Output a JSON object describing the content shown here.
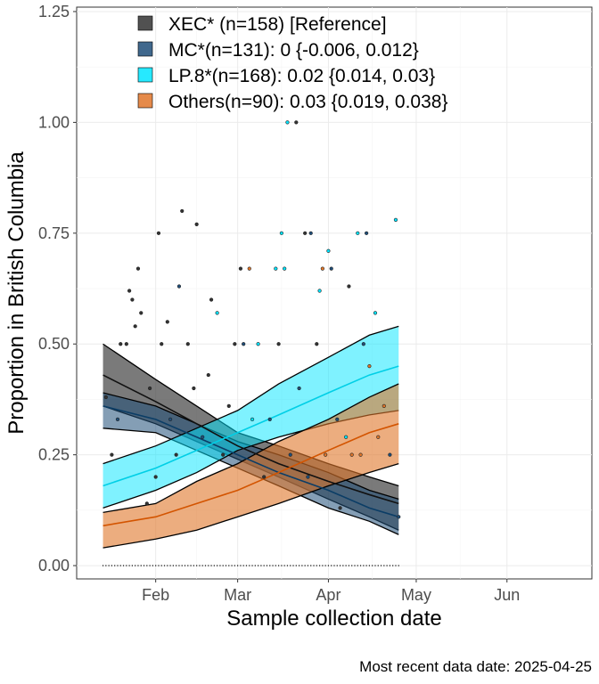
{
  "chart_data": {
    "type": "area",
    "title": "",
    "xlabel": "Sample collection date",
    "ylabel": "Proportion in British Columbia",
    "caption": "Most recent data date: 2025-04-25",
    "x_ticks": [
      "Feb",
      "Mar",
      "Apr",
      "May",
      "Jun"
    ],
    "x_tick_dates": [
      "2025-02-01",
      "2025-03-01",
      "2025-04-01",
      "2025-05-01",
      "2025-06-01"
    ],
    "xlim": [
      "2025-01-05",
      "2025-06-30"
    ],
    "y_ticks": [
      "0.00",
      "0.25",
      "0.50",
      "0.75",
      "1.00",
      "1.25"
    ],
    "y_tick_values": [
      0,
      0.25,
      0.5,
      0.75,
      1.0,
      1.25
    ],
    "ylim": [
      -0.03,
      1.26
    ],
    "grid": true,
    "legend_position": "top-left inside",
    "legend": [
      {
        "label": "XEC* (n=158)  [Reference]",
        "color": "#333333"
      },
      {
        "label": "MC*(n=131): 0 {-0.006, 0.012}",
        "color": "#1f4e79"
      },
      {
        "label": "LP.8*(n=168): 0.02 {0.014, 0.03}",
        "color": "#00e5ff"
      },
      {
        "label": "Others(n=90): 0.03 {0.019, 0.038}",
        "color": "#e0762a"
      }
    ],
    "series": [
      {
        "name": "XEC* (n=158)  [Reference]",
        "fill": "#333333",
        "line": "#111111",
        "opacity": 0.65,
        "x": [
          "2025-01-14",
          "2025-02-01",
          "2025-02-15",
          "2025-03-01",
          "2025-03-15",
          "2025-04-01",
          "2025-04-15",
          "2025-04-25"
        ],
        "fit": [
          0.43,
          0.37,
          0.32,
          0.27,
          0.23,
          0.19,
          0.16,
          0.14
        ],
        "lower": [
          0.36,
          0.32,
          0.28,
          0.24,
          0.2,
          0.15,
          0.11,
          0.08
        ],
        "upper": [
          0.5,
          0.42,
          0.36,
          0.3,
          0.27,
          0.23,
          0.2,
          0.18
        ]
      },
      {
        "name": "MC*(n=131): 0 {-0.006, 0.012}",
        "fill": "#1f4e79",
        "line": "#0b3d66",
        "opacity": 0.55,
        "x": [
          "2025-01-14",
          "2025-02-01",
          "2025-02-15",
          "2025-03-01",
          "2025-03-15",
          "2025-04-01",
          "2025-04-15",
          "2025-04-25"
        ],
        "fit": [
          0.36,
          0.33,
          0.29,
          0.25,
          0.21,
          0.17,
          0.13,
          0.11
        ],
        "lower": [
          0.31,
          0.3,
          0.26,
          0.22,
          0.18,
          0.13,
          0.1,
          0.07
        ],
        "upper": [
          0.39,
          0.36,
          0.32,
          0.28,
          0.25,
          0.21,
          0.17,
          0.15
        ]
      },
      {
        "name": "LP.8*(n=168): 0.02 {0.014, 0.03}",
        "fill": "#00e5ff",
        "line": "#00cfe6",
        "opacity": 0.5,
        "x": [
          "2025-01-14",
          "2025-02-01",
          "2025-02-15",
          "2025-03-01",
          "2025-03-15",
          "2025-04-01",
          "2025-04-15",
          "2025-04-25"
        ],
        "fit": [
          0.18,
          0.22,
          0.26,
          0.3,
          0.34,
          0.39,
          0.43,
          0.45
        ],
        "lower": [
          0.13,
          0.17,
          0.21,
          0.26,
          0.29,
          0.32,
          0.34,
          0.35
        ],
        "upper": [
          0.23,
          0.27,
          0.31,
          0.35,
          0.41,
          0.47,
          0.52,
          0.54
        ]
      },
      {
        "name": "Others(n=90): 0.03 {0.019, 0.038}",
        "fill": "#e0762a",
        "line": "#d35400",
        "opacity": 0.6,
        "x": [
          "2025-01-14",
          "2025-02-01",
          "2025-02-15",
          "2025-03-01",
          "2025-03-15",
          "2025-04-01",
          "2025-04-15",
          "2025-04-25"
        ],
        "fit": [
          0.09,
          0.11,
          0.14,
          0.17,
          0.21,
          0.26,
          0.3,
          0.32
        ],
        "lower": [
          0.04,
          0.06,
          0.08,
          0.11,
          0.14,
          0.18,
          0.21,
          0.23
        ],
        "upper": [
          0.12,
          0.14,
          0.19,
          0.23,
          0.28,
          0.33,
          0.38,
          0.41
        ]
      }
    ],
    "points": [
      {
        "x": "2025-01-15",
        "y": 0.38,
        "color": "#333333"
      },
      {
        "x": "2025-01-17",
        "y": 0.25,
        "color": "#333333"
      },
      {
        "x": "2025-01-19",
        "y": 0.33,
        "color": "#1f4e79"
      },
      {
        "x": "2025-01-20",
        "y": 0.5,
        "color": "#333333"
      },
      {
        "x": "2025-01-22",
        "y": 0.5,
        "color": "#333333"
      },
      {
        "x": "2025-01-23",
        "y": 0.62,
        "color": "#333333"
      },
      {
        "x": "2025-01-24",
        "y": 0.6,
        "color": "#333333"
      },
      {
        "x": "2025-01-25",
        "y": 0.54,
        "color": "#333333"
      },
      {
        "x": "2025-01-26",
        "y": 0.67,
        "color": "#333333"
      },
      {
        "x": "2025-01-27",
        "y": 0.57,
        "color": "#333333"
      },
      {
        "x": "2025-01-29",
        "y": 0.14,
        "color": "#333333"
      },
      {
        "x": "2025-01-30",
        "y": 0.4,
        "color": "#333333"
      },
      {
        "x": "2025-02-01",
        "y": 0.2,
        "color": "#333333"
      },
      {
        "x": "2025-02-02",
        "y": 0.75,
        "color": "#333333"
      },
      {
        "x": "2025-02-03",
        "y": 0.5,
        "color": "#333333"
      },
      {
        "x": "2025-02-05",
        "y": 0.55,
        "color": "#333333"
      },
      {
        "x": "2025-02-06",
        "y": 0.33,
        "color": "#1f4e79"
      },
      {
        "x": "2025-02-08",
        "y": 0.25,
        "color": "#333333"
      },
      {
        "x": "2025-02-09",
        "y": 0.63,
        "color": "#1f4e79"
      },
      {
        "x": "2025-02-10",
        "y": 0.8,
        "color": "#333333"
      },
      {
        "x": "2025-02-12",
        "y": 0.5,
        "color": "#333333"
      },
      {
        "x": "2025-02-14",
        "y": 0.4,
        "color": "#333333"
      },
      {
        "x": "2025-02-15",
        "y": 0.77,
        "color": "#333333"
      },
      {
        "x": "2025-02-17",
        "y": 0.29,
        "color": "#1f4e79"
      },
      {
        "x": "2025-02-19",
        "y": 0.43,
        "color": "#333333"
      },
      {
        "x": "2025-02-20",
        "y": 0.6,
        "color": "#333333"
      },
      {
        "x": "2025-02-22",
        "y": 0.57,
        "color": "#00e5ff"
      },
      {
        "x": "2025-02-24",
        "y": 0.25,
        "color": "#333333"
      },
      {
        "x": "2025-02-26",
        "y": 0.36,
        "color": "#333333"
      },
      {
        "x": "2025-02-28",
        "y": 0.5,
        "color": "#333333"
      },
      {
        "x": "2025-03-02",
        "y": 0.67,
        "color": "#333333"
      },
      {
        "x": "2025-03-03",
        "y": 0.5,
        "color": "#1f4e79"
      },
      {
        "x": "2025-03-05",
        "y": 0.67,
        "color": "#e0762a"
      },
      {
        "x": "2025-03-06",
        "y": 0.33,
        "color": "#00e5ff"
      },
      {
        "x": "2025-03-08",
        "y": 0.5,
        "color": "#00e5ff"
      },
      {
        "x": "2025-03-10",
        "y": 0.2,
        "color": "#333333"
      },
      {
        "x": "2025-03-12",
        "y": 0.33,
        "color": "#1f4e79"
      },
      {
        "x": "2025-03-14",
        "y": 0.67,
        "color": "#00e5ff"
      },
      {
        "x": "2025-03-15",
        "y": 0.5,
        "color": "#333333"
      },
      {
        "x": "2025-03-16",
        "y": 0.75,
        "color": "#00e5ff"
      },
      {
        "x": "2025-03-17",
        "y": 0.67,
        "color": "#00e5ff"
      },
      {
        "x": "2025-03-18",
        "y": 1.0,
        "color": "#00e5ff"
      },
      {
        "x": "2025-03-19",
        "y": 0.25,
        "color": "#1f4e79"
      },
      {
        "x": "2025-03-21",
        "y": 1.0,
        "color": "#333333"
      },
      {
        "x": "2025-03-22",
        "y": 0.4,
        "color": "#1f4e79"
      },
      {
        "x": "2025-03-24",
        "y": 0.75,
        "color": "#333333"
      },
      {
        "x": "2025-03-25",
        "y": 0.2,
        "color": "#1f4e79"
      },
      {
        "x": "2025-03-26",
        "y": 0.75,
        "color": "#1f4e79"
      },
      {
        "x": "2025-03-28",
        "y": 0.5,
        "color": "#333333"
      },
      {
        "x": "2025-03-29",
        "y": 0.62,
        "color": "#00e5ff"
      },
      {
        "x": "2025-03-30",
        "y": 0.67,
        "color": "#e0762a"
      },
      {
        "x": "2025-03-31",
        "y": 0.25,
        "color": "#e0762a"
      },
      {
        "x": "2025-04-01",
        "y": 0.71,
        "color": "#00e5ff"
      },
      {
        "x": "2025-04-02",
        "y": 0.67,
        "color": "#1f4e79"
      },
      {
        "x": "2025-04-04",
        "y": 0.33,
        "color": "#1f4e79"
      },
      {
        "x": "2025-04-05",
        "y": 0.13,
        "color": "#333333"
      },
      {
        "x": "2025-04-07",
        "y": 0.29,
        "color": "#00e5ff"
      },
      {
        "x": "2025-04-08",
        "y": 0.63,
        "color": "#333333"
      },
      {
        "x": "2025-04-09",
        "y": 0.25,
        "color": "#e0762a"
      },
      {
        "x": "2025-04-11",
        "y": 0.75,
        "color": "#00e5ff"
      },
      {
        "x": "2025-04-12",
        "y": 0.25,
        "color": "#e0762a"
      },
      {
        "x": "2025-04-13",
        "y": 0.5,
        "color": "#1f4e79"
      },
      {
        "x": "2025-04-14",
        "y": 0.75,
        "color": "#1f4e79"
      },
      {
        "x": "2025-04-15",
        "y": 0.45,
        "color": "#e0762a"
      },
      {
        "x": "2025-04-17",
        "y": 0.57,
        "color": "#00e5ff"
      },
      {
        "x": "2025-04-18",
        "y": 0.29,
        "color": "#e0762a"
      },
      {
        "x": "2025-04-20",
        "y": 0.36,
        "color": "#e0762a"
      },
      {
        "x": "2025-04-22",
        "y": 0.25,
        "color": "#1f4e79"
      },
      {
        "x": "2025-04-24",
        "y": 0.78,
        "color": "#00e5ff"
      },
      {
        "x": "2025-04-25",
        "y": 0.11,
        "color": "#1f4e79"
      }
    ]
  }
}
